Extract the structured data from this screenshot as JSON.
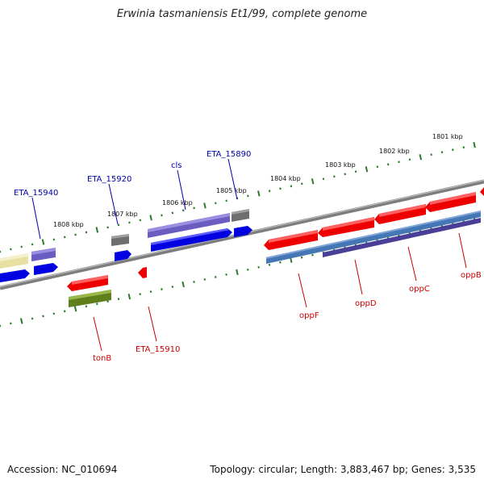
{
  "title": "Erwinia tasmaniensis Et1/99, complete genome",
  "footer": {
    "accession": "Accession: NC_010694",
    "topology": "Topology: circular; Length: 3,883,467 bp; Genes: 3,535"
  },
  "scale_labels": [
    "1801 kbp",
    "1802 kbp",
    "1803 kbp",
    "1804 kbp",
    "1805 kbp",
    "1806 kbp",
    "1807 kbp",
    "1808 kbp"
  ],
  "gene_labels": [
    {
      "name": "cls",
      "color": "#0000aa",
      "side": "top"
    },
    {
      "name": "ETA_15890",
      "color": "#0000aa",
      "side": "top"
    },
    {
      "name": "ETA_15920",
      "color": "#0000aa",
      "side": "top"
    },
    {
      "name": "ETA_15940",
      "color": "#0000aa",
      "side": "top"
    },
    {
      "name": "oppF",
      "color": "#cc0000",
      "side": "bottom"
    },
    {
      "name": "oppD",
      "color": "#cc0000",
      "side": "bottom"
    },
    {
      "name": "oppC",
      "color": "#cc0000",
      "side": "bottom"
    },
    {
      "name": "oppB",
      "color": "#cc0000",
      "side": "bottom"
    },
    {
      "name": "tonB",
      "color": "#cc0000",
      "side": "bottom"
    },
    {
      "name": "ETA_15910",
      "color": "#cc0000",
      "side": "bottom"
    }
  ],
  "colors": {
    "backbone": "#8a8a8a",
    "ticks": "#2a7a2a",
    "gene_red": "#ee0000",
    "gene_blue": "#0000ee",
    "gene_purple": "#7060c8",
    "gene_grey": "#707070",
    "gene_steel": "#4a7ab8",
    "gene_olive": "#6a8a20",
    "gene_yellow": "#e8e0a0"
  }
}
